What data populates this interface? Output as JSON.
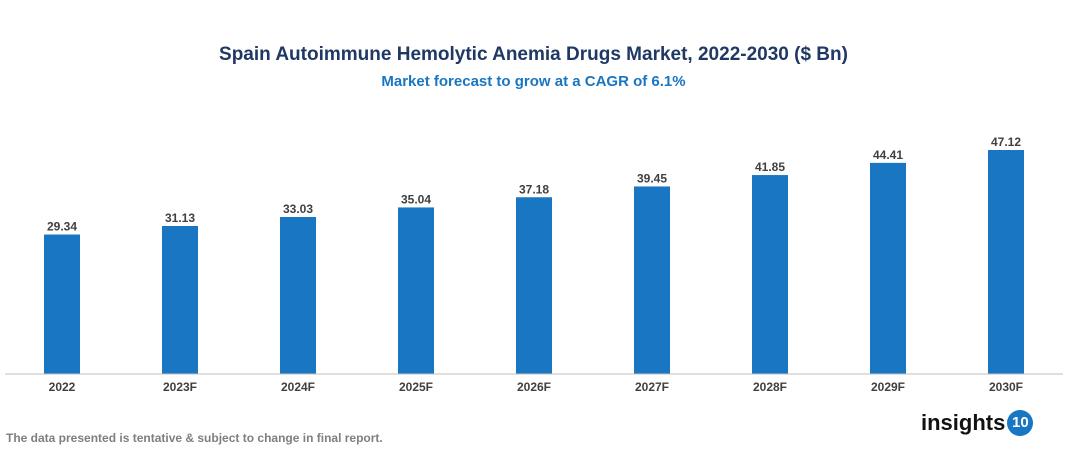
{
  "chart_data": {
    "type": "bar",
    "title": "Spain Autoimmune Hemolytic Anemia Drugs Market, 2022-2030 ($ Bn)",
    "subtitle": "Market forecast to grow at a CAGR of 6.1%",
    "categories": [
      "2022",
      "2023F",
      "2024F",
      "2025F",
      "2026F",
      "2027F",
      "2028F",
      "2029F",
      "2030F"
    ],
    "values": [
      29.34,
      31.13,
      33.03,
      35.04,
      37.18,
      39.45,
      41.85,
      44.41,
      47.12
    ],
    "value_labels": [
      "29.34",
      "31.13",
      "33.03",
      "35.04",
      "37.18",
      "39.45",
      "41.85",
      "44.41",
      "47.12"
    ],
    "xlabel": "",
    "ylabel": "",
    "ylim": [
      0,
      49
    ],
    "grid": false,
    "bar_color": "#1976c2"
  },
  "footnote": "The data presented is tentative & subject to change in final report.",
  "logo": {
    "text": "insights",
    "badge": "10"
  }
}
